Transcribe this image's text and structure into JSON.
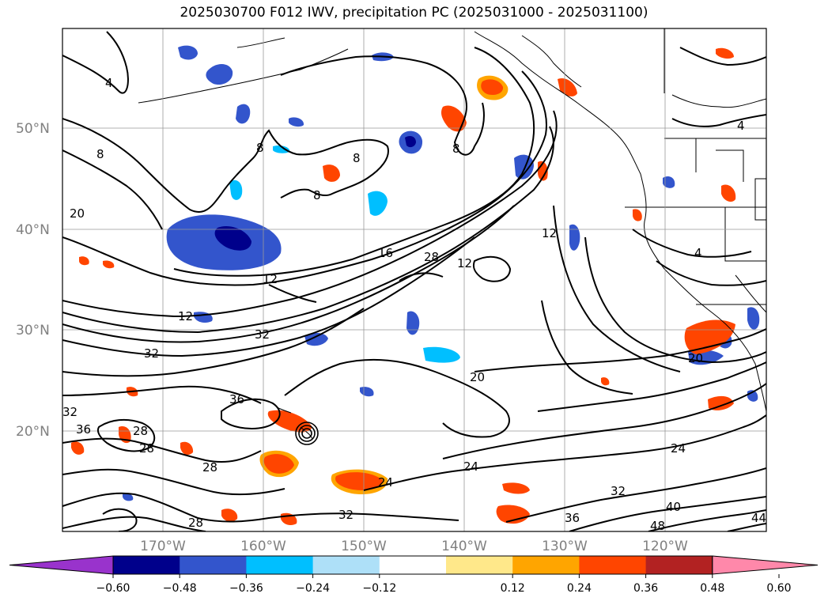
{
  "title": "2025030700 F012 IWV, precipitation PC (2025031000 - 2025031100)",
  "latitude_labels": [
    "50°N",
    "40°N",
    "30°N",
    "20°N"
  ],
  "longitude_labels": [
    "170°W",
    "160°W",
    "150°W",
    "140°W",
    "130°W",
    "120°W"
  ],
  "contour_labels": [
    "4",
    "8",
    "8",
    "8",
    "8",
    "8",
    "12",
    "12",
    "12",
    "12",
    "16",
    "20",
    "20",
    "20",
    "24",
    "24",
    "24",
    "28",
    "28",
    "28",
    "28",
    "28",
    "32",
    "32",
    "32",
    "32",
    "32",
    "36",
    "36",
    "36",
    "40",
    "44",
    "48",
    "4",
    "4"
  ],
  "colorbar": {
    "ticks": [
      "−0.60",
      "−0.48",
      "−0.36",
      "−0.24",
      "−0.12",
      "0.12",
      "0.24",
      "0.36",
      "0.48",
      "0.60"
    ],
    "colors": [
      "#9933cc",
      "#00008b",
      "#3355cc",
      "#00bfff",
      "#aee0f8",
      "#ffffff",
      "#ffe88a",
      "#ffa500",
      "#ff4500",
      "#b22222",
      "#ff88aa"
    ]
  },
  "colors": {
    "contour": "#000000",
    "grid": "#999999",
    "axis_label": "#808080"
  }
}
